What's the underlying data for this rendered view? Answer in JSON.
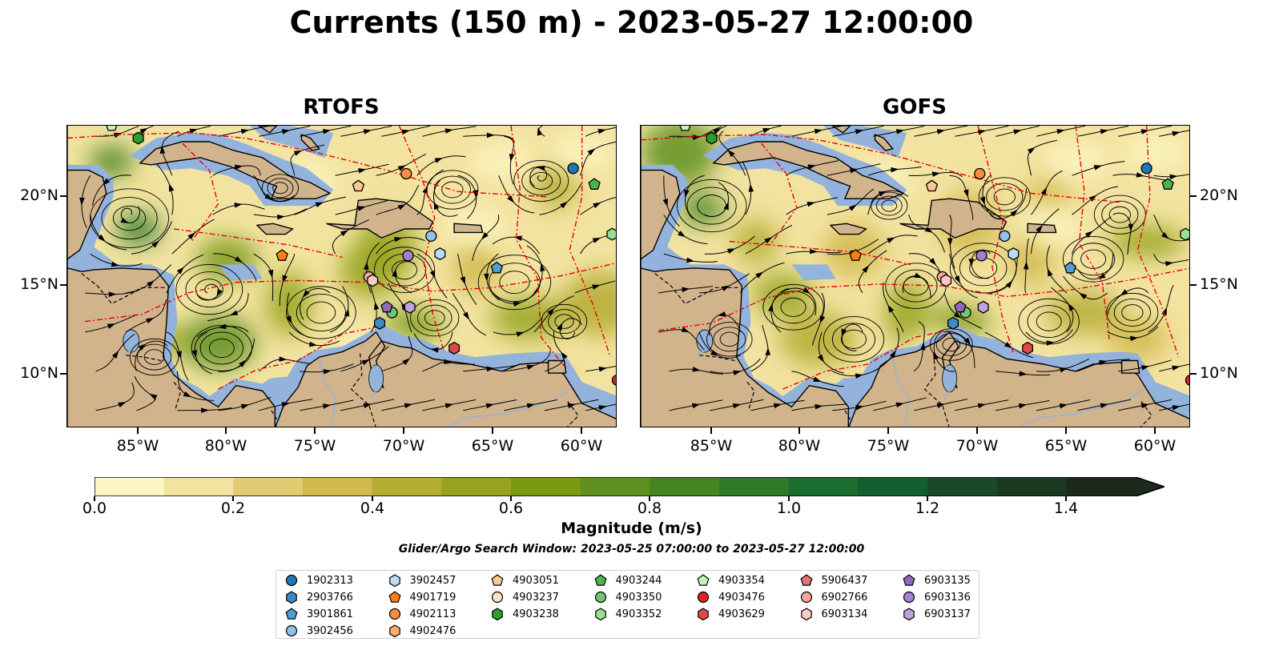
{
  "title": "Currents (150 m) - 2023-05-27 12:00:00",
  "panels": [
    {
      "id": "rtofs",
      "title": "RTOFS"
    },
    {
      "id": "gofs",
      "title": "GOFS"
    }
  ],
  "map_extent": {
    "lon": [
      -89,
      -58
    ],
    "lat": [
      7,
      24
    ]
  },
  "axes": {
    "x_ticks": [
      "85°W",
      "80°W",
      "75°W",
      "70°W",
      "65°W",
      "60°W"
    ],
    "x_tick_values": [
      -85,
      -80,
      -75,
      -70,
      -65,
      -60
    ],
    "y_ticks": [
      "20°N",
      "15°N",
      "10°N"
    ],
    "y_tick_values": [
      20,
      15,
      10
    ]
  },
  "colorbar": {
    "label": "Magnitude (m/s)",
    "ticks": [
      "0.0",
      "0.2",
      "0.4",
      "0.6",
      "0.8",
      "1.0",
      "1.2",
      "1.4"
    ],
    "tick_values": [
      0.0,
      0.2,
      0.4,
      0.6,
      0.8,
      1.0,
      1.2,
      1.4
    ],
    "range": [
      0.0,
      1.5
    ],
    "extend": "max",
    "colors": [
      "#fdf6c3",
      "#f3e3a0",
      "#e2cc72",
      "#d1b94e",
      "#b5ac34",
      "#97a31e",
      "#7b9a14",
      "#5f8f1c",
      "#468422",
      "#2f7a29",
      "#1a6e2f",
      "#135e2d",
      "#184a2a",
      "#1b3a22",
      "#1b2a1a"
    ]
  },
  "search_window": "Glider/Argo Search Window: 2023-05-25 07:00:00 to 2023-05-27 12:00:00",
  "legend": [
    {
      "label": "1902313",
      "marker": "circle",
      "color": "#1f77b4"
    },
    {
      "label": "2903766",
      "marker": "hexagon",
      "color": "#3b8bc4"
    },
    {
      "label": "3901861",
      "marker": "pentagon",
      "color": "#4f9fd4"
    },
    {
      "label": "3902456",
      "marker": "circle",
      "color": "#8fc1e9"
    },
    {
      "label": "3902457",
      "marker": "hexagon",
      "color": "#b9dcf5"
    },
    {
      "label": "4901719",
      "marker": "pentagon",
      "color": "#ff7f0e"
    },
    {
      "label": "4902113",
      "marker": "circle",
      "color": "#fd8d3c"
    },
    {
      "label": "4902476",
      "marker": "hexagon",
      "color": "#fdae6b"
    },
    {
      "label": "4903051",
      "marker": "pentagon",
      "color": "#fdc895"
    },
    {
      "label": "4903237",
      "marker": "circle",
      "color": "#fde0c5"
    },
    {
      "label": "4903238",
      "marker": "hexagon",
      "color": "#2ca02c"
    },
    {
      "label": "4903244",
      "marker": "pentagon",
      "color": "#4cb64c"
    },
    {
      "label": "4903350",
      "marker": "circle",
      "color": "#74c476"
    },
    {
      "label": "4903352",
      "marker": "hexagon",
      "color": "#98e090"
    },
    {
      "label": "4903354",
      "marker": "pentagon",
      "color": "#c7f2c0"
    },
    {
      "label": "4903476",
      "marker": "circle",
      "color": "#d62728"
    },
    {
      "label": "4903629",
      "marker": "hexagon",
      "color": "#e04848"
    },
    {
      "label": "5906437",
      "marker": "pentagon",
      "color": "#e87070"
    },
    {
      "label": "6902766",
      "marker": "circle",
      "color": "#f4a29a"
    },
    {
      "label": "6903134",
      "marker": "hexagon",
      "color": "#fbcac4"
    },
    {
      "label": "6903135",
      "marker": "pentagon",
      "color": "#9467bd"
    },
    {
      "label": "6903136",
      "marker": "circle",
      "color": "#a57fd0"
    },
    {
      "label": "6903137",
      "marker": "hexagon",
      "color": "#c0a2e0"
    }
  ],
  "floats_positions": [
    {
      "label": "1902313",
      "rtofs": [
        -60.5,
        21.6
      ],
      "gofs": [
        -60.5,
        21.6
      ]
    },
    {
      "label": "2903766",
      "rtofs": [
        -71.4,
        12.9
      ],
      "gofs": [
        -71.4,
        12.9
      ]
    },
    {
      "label": "3901861",
      "rtofs": [
        -64.8,
        16.0
      ],
      "gofs": [
        -64.8,
        16.0
      ]
    },
    {
      "label": "3902456",
      "rtofs": [
        -68.5,
        17.8
      ],
      "gofs": [
        -68.5,
        17.8
      ]
    },
    {
      "label": "3902457",
      "rtofs": [
        -68.0,
        16.8
      ],
      "gofs": [
        -68.0,
        16.8
      ]
    },
    {
      "label": "4901719",
      "rtofs": [
        -76.9,
        16.7
      ],
      "gofs": [
        -76.9,
        16.7
      ]
    },
    {
      "label": "4902113",
      "rtofs": [
        -69.9,
        21.3
      ],
      "gofs": [
        -69.9,
        21.3
      ]
    },
    {
      "label": "4903051",
      "rtofs": [
        -72.6,
        20.6
      ],
      "gofs": [
        -72.6,
        20.6
      ]
    },
    {
      "label": "4903238",
      "rtofs": [
        -85.0,
        23.3
      ],
      "gofs": [
        -85.0,
        23.3
      ]
    },
    {
      "label": "4903244",
      "rtofs": [
        -59.3,
        20.7
      ],
      "gofs": [
        -59.3,
        20.7
      ]
    },
    {
      "label": "4903350",
      "rtofs": [
        -70.7,
        13.5
      ],
      "gofs": [
        -70.7,
        13.5
      ]
    },
    {
      "label": "4903352",
      "rtofs": [
        -58.3,
        17.9
      ],
      "gofs": [
        -58.3,
        17.9
      ]
    },
    {
      "label": "4903354",
      "rtofs": [
        -86.5,
        24.0
      ],
      "gofs": [
        -86.5,
        24.0
      ]
    },
    {
      "label": "4903476",
      "rtofs": [
        -58.0,
        9.7
      ],
      "gofs": [
        -58.0,
        9.7
      ]
    },
    {
      "label": "4903629",
      "rtofs": [
        -67.2,
        11.5
      ],
      "gofs": [
        -67.2,
        11.5
      ]
    },
    {
      "label": "6902766",
      "rtofs": [
        -72.0,
        15.5
      ],
      "gofs": [
        -72.0,
        15.5
      ]
    },
    {
      "label": "6903134",
      "rtofs": [
        -71.8,
        15.3
      ],
      "gofs": [
        -71.8,
        15.3
      ]
    },
    {
      "label": "6903135",
      "rtofs": [
        -71.0,
        13.8
      ],
      "gofs": [
        -71.0,
        13.8
      ]
    },
    {
      "label": "6903136",
      "rtofs": [
        -69.8,
        16.7
      ],
      "gofs": [
        -69.8,
        16.7
      ]
    },
    {
      "label": "6903137",
      "rtofs": [
        -69.7,
        13.8
      ],
      "gofs": [
        -69.7,
        13.8
      ]
    }
  ]
}
